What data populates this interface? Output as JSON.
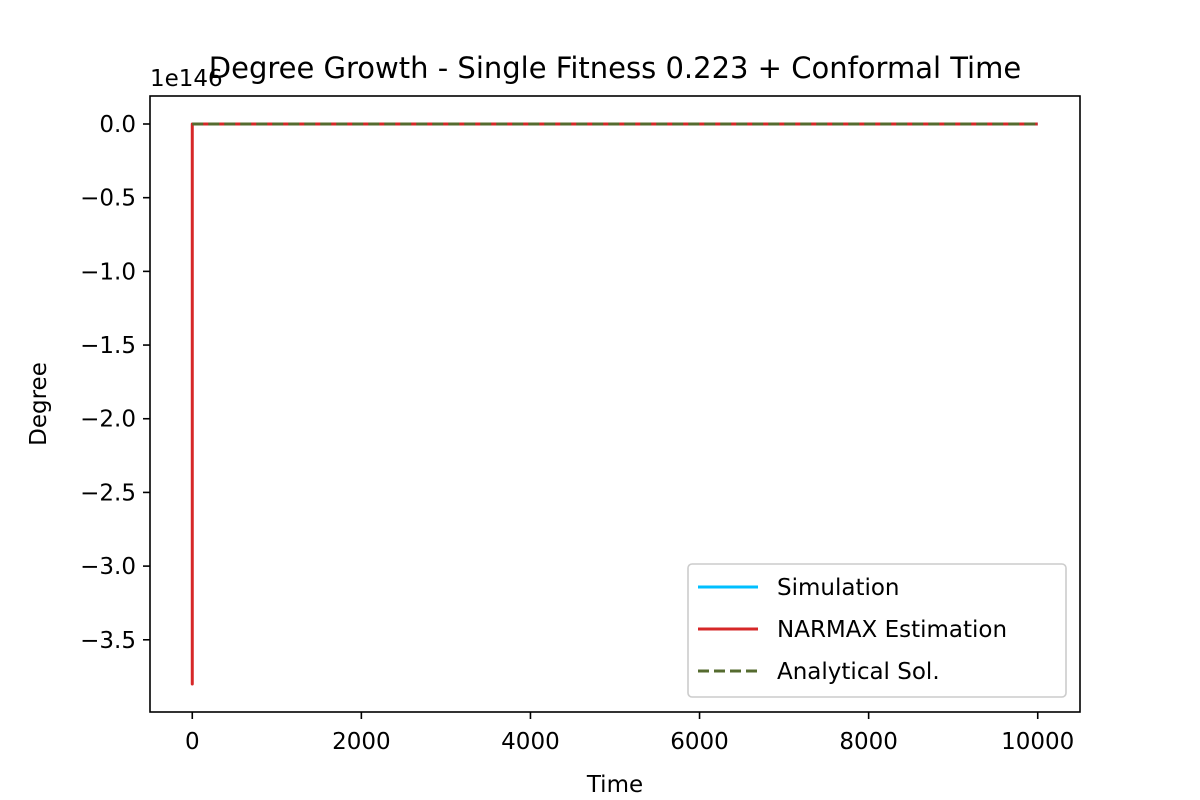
{
  "chart_data": {
    "type": "line",
    "title": "Degree Growth - Single Fitness 0.223 + Conformal Time",
    "xlabel": "Time",
    "ylabel": "Degree",
    "offset_text": "1e146",
    "y_scale_factor": 1e+146,
    "xlim": [
      -500,
      10500
    ],
    "ylim": [
      -3.99,
      0.19
    ],
    "xticks": [
      0,
      2000,
      4000,
      6000,
      8000,
      10000
    ],
    "xtick_labels": [
      "0",
      "2000",
      "4000",
      "6000",
      "8000",
      "10000"
    ],
    "yticks": [
      0.0,
      -0.5,
      -1.0,
      -1.5,
      -2.0,
      -2.5,
      -3.0,
      -3.5
    ],
    "ytick_labels": [
      "0.0",
      "−0.5",
      "−1.0",
      "−1.5",
      "−2.0",
      "−2.5",
      "−3.0",
      "−3.5"
    ],
    "grid": false,
    "legend_position": "lower-right",
    "series": [
      {
        "name": "Simulation",
        "color": "#00bfff",
        "dash": "solid",
        "x": [
          0,
          10000
        ],
        "y": [
          0,
          0
        ]
      },
      {
        "name": "NARMAX Estimation",
        "color": "#d62728",
        "dash": "solid",
        "x": [
          0,
          0,
          0,
          10000
        ],
        "y": [
          0,
          -3.8,
          0,
          0
        ]
      },
      {
        "name": "Analytical Sol.",
        "color": "#556b2f",
        "dash": "dashed",
        "x": [
          0,
          10000
        ],
        "y": [
          0,
          0
        ]
      }
    ]
  }
}
